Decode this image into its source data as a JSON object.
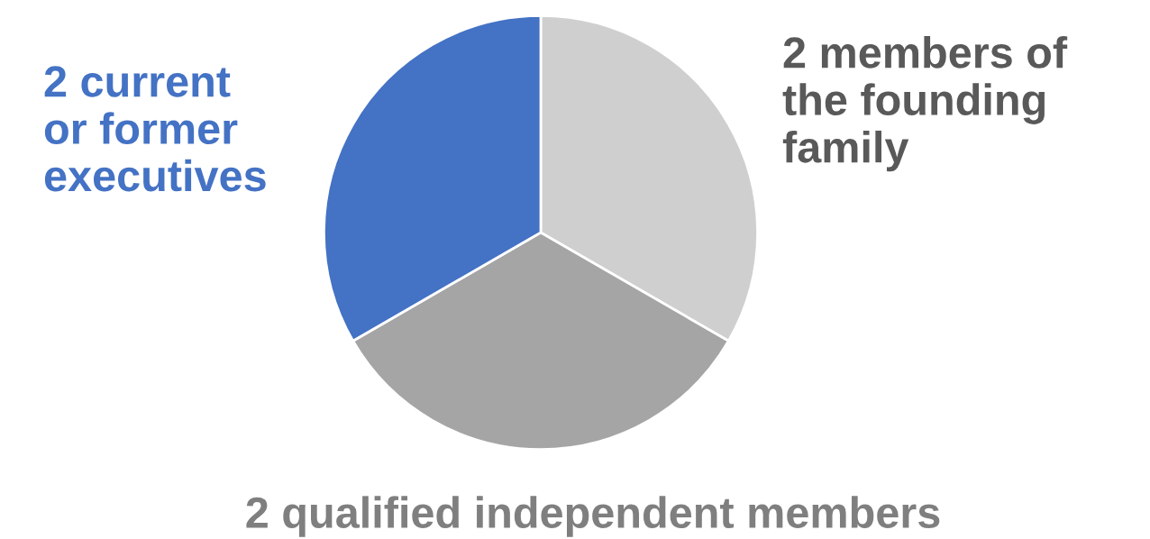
{
  "chart_data": {
    "type": "pie",
    "categories": [
      "2 members of\nthe founding\nfamily",
      "2 qualified independent members",
      "2 current\nor former\nexecutives"
    ],
    "values": [
      2,
      2,
      2
    ],
    "colors": [
      "#d0cfd0",
      "#a5a5a5",
      "#4472c4"
    ]
  }
}
